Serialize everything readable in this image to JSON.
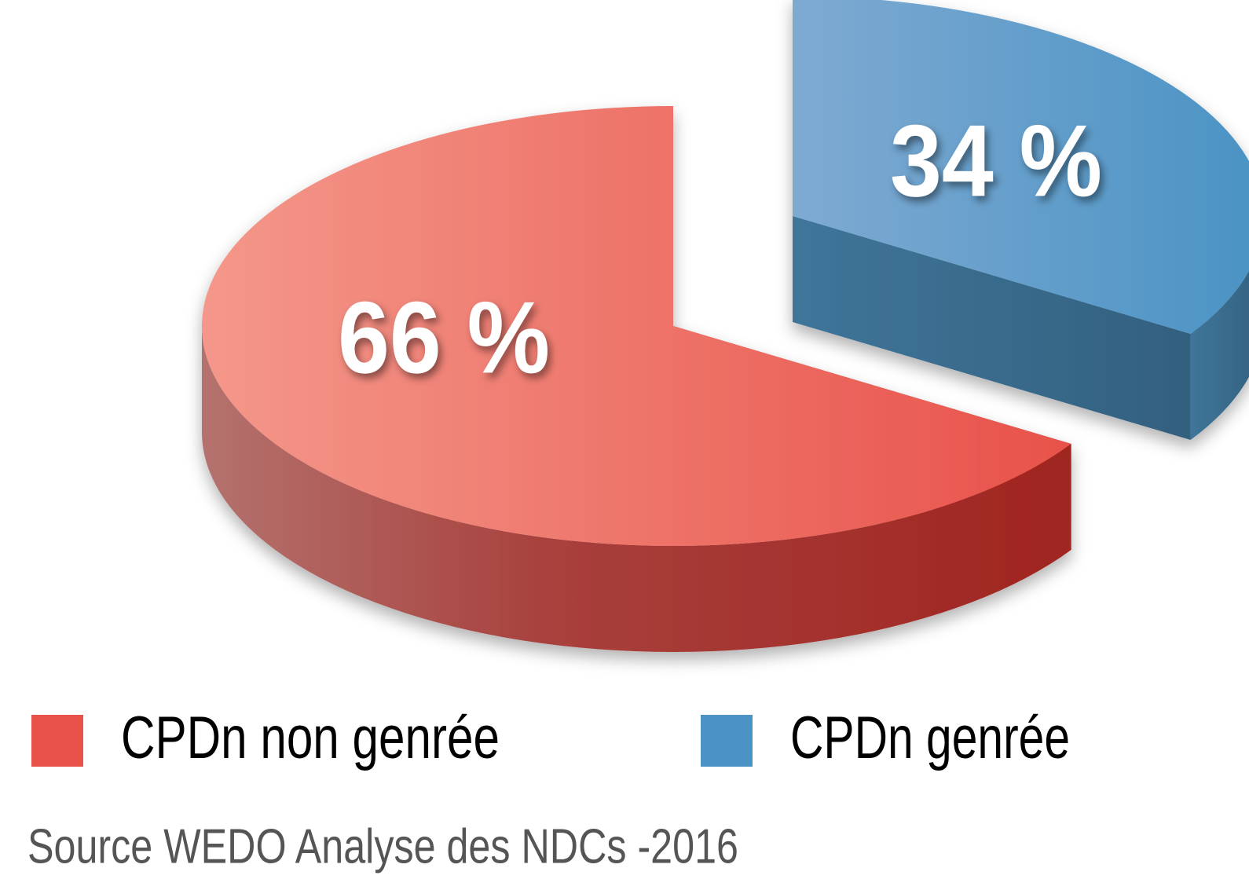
{
  "chart_data": {
    "type": "pie3d",
    "categories": [
      "CPDn non genrée",
      "CPDn genrée"
    ],
    "values": [
      66,
      34
    ],
    "value_labels": [
      "66 %",
      "34 %"
    ],
    "colors": [
      "#e8524a",
      "#4a93c4"
    ],
    "source": "Source WEDO Analyse des NDCs -2016"
  }
}
